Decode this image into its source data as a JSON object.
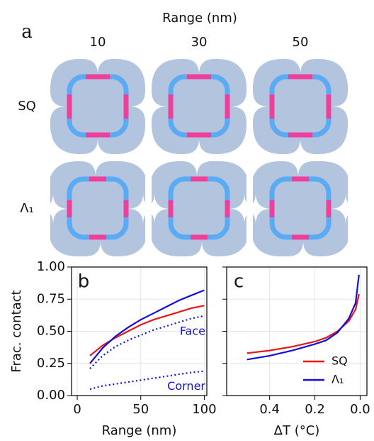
{
  "panel_a": {
    "label": "a",
    "title": "Range (nm)",
    "columns": [
      "10",
      "30",
      "50"
    ],
    "rows": [
      "SQ",
      "Λ₁"
    ]
  },
  "chart_data": [
    {
      "type": "line",
      "label": "b",
      "xlabel": "Range (nm)",
      "ylabel": "Frac. contact",
      "x": [
        10,
        20,
        30,
        40,
        50,
        60,
        70,
        80,
        90,
        100
      ],
      "xlim": [
        -4.5,
        102
      ],
      "xticks": [
        0,
        50,
        100
      ],
      "ylim": [
        0,
        1
      ],
      "yticks": [
        {
          "value": 0,
          "label": "0.00"
        },
        {
          "value": 0.25,
          "label": "0.25"
        },
        {
          "value": 0.5,
          "label": "0.50"
        },
        {
          "value": 0.75,
          "label": "0.75"
        },
        {
          "value": 1,
          "label": "1.00"
        }
      ],
      "grid": true,
      "series": [
        {
          "color": "#e8161b",
          "style": "solid",
          "values": [
            0.31,
            0.39,
            0.45,
            0.5,
            0.55,
            0.59,
            0.62,
            0.65,
            0.68,
            0.7
          ]
        },
        {
          "color": "#1010d8",
          "style": "solid",
          "values": [
            0.25,
            0.37,
            0.46,
            0.53,
            0.59,
            0.64,
            0.69,
            0.74,
            0.78,
            0.82
          ]
        },
        {
          "name": "Face",
          "color": "#1010d8",
          "style": "dotted",
          "values": [
            0.21,
            0.31,
            0.38,
            0.43,
            0.47,
            0.51,
            0.54,
            0.57,
            0.6,
            0.62
          ]
        },
        {
          "name": "Corner",
          "color": "#1010d8",
          "style": "dotted",
          "values": [
            0.05,
            0.075,
            0.09,
            0.105,
            0.12,
            0.135,
            0.15,
            0.165,
            0.18,
            0.19
          ]
        }
      ]
    },
    {
      "type": "line",
      "label": "c",
      "xlabel": "ΔT (°C)",
      "x": [
        0.5,
        0.4,
        0.3,
        0.2,
        0.15,
        0.1,
        0.05,
        0.02,
        0.005
      ],
      "xlim": [
        0.59,
        -0.03
      ],
      "xticks": [
        0.4,
        0.2,
        {
          "value": 0,
          "label": "0.0"
        }
      ],
      "ylim": [
        0,
        1
      ],
      "yticks": [
        0,
        0.25,
        0.5,
        0.75,
        1
      ],
      "grid": true,
      "legend": "lower right",
      "series": [
        {
          "name": "SQ",
          "color": "#e8161b",
          "style": "solid",
          "values": [
            0.33,
            0.35,
            0.38,
            0.42,
            0.45,
            0.5,
            0.58,
            0.67,
            0.79
          ]
        },
        {
          "name": "Λ₁",
          "color": "#1010d8",
          "style": "solid",
          "values": [
            0.28,
            0.31,
            0.35,
            0.4,
            0.43,
            0.49,
            0.6,
            0.72,
            0.94
          ]
        }
      ]
    }
  ]
}
